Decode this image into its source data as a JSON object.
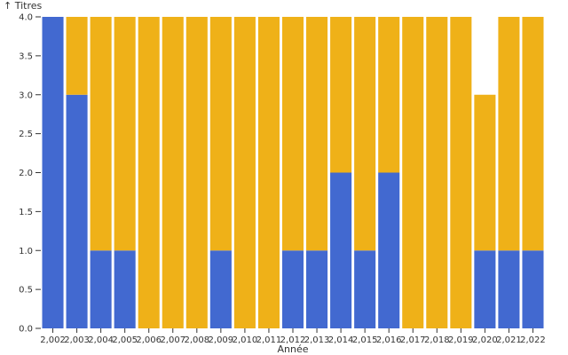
{
  "chart_data": {
    "type": "bar",
    "stacked": true,
    "categories": [
      "2,002",
      "2,003",
      "2,004",
      "2,005",
      "2,006",
      "2,007",
      "2,008",
      "2,009",
      "2,010",
      "2,011",
      "2,012",
      "2,013",
      "2,014",
      "2,015",
      "2,016",
      "2,017",
      "2,018",
      "2,019",
      "2,020",
      "2,021",
      "2,022"
    ],
    "series": [
      {
        "color": "#4269d0",
        "values": [
          4,
          3,
          1,
          1,
          0,
          0,
          0,
          1,
          0,
          0,
          1,
          1,
          2,
          1,
          2,
          0,
          0,
          0,
          1,
          1,
          1
        ]
      },
      {
        "color": "#efb118",
        "values": [
          0,
          1,
          3,
          3,
          4,
          4,
          4,
          3,
          4,
          4,
          3,
          3,
          2,
          3,
          2,
          4,
          4,
          4,
          2,
          3,
          3
        ]
      }
    ],
    "xlabel": "Année",
    "ylabel": "↑ Titres",
    "ylim": [
      0,
      4
    ],
    "yticks": [
      "0.0",
      "0.5",
      "1.0",
      "1.5",
      "2.0",
      "2.5",
      "3.0",
      "3.5",
      "4.0"
    ],
    "grid": false,
    "legend": "none"
  }
}
